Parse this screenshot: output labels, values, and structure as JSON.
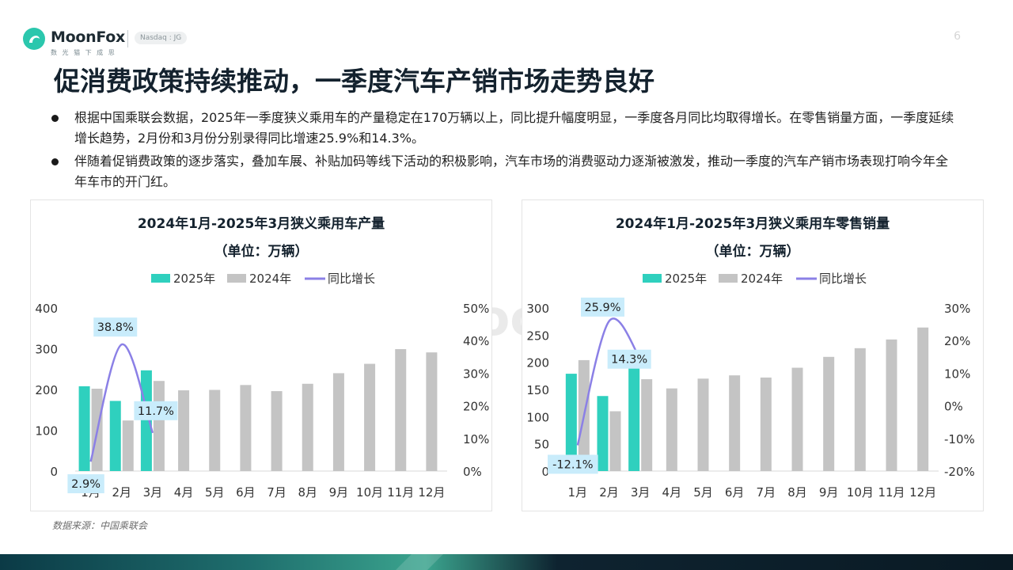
{
  "brand": {
    "name": "MoonFox",
    "tagline": "数 光 猫 下 成 思",
    "ticker": "Nasdaq : JG"
  },
  "page_number": "6",
  "title": "促消费政策持续推动，一季度汽车产销市场走势良好",
  "bullets": [
    "根据中国乘联会数据，2025年一季度狭义乘用车的产量稳定在170万辆以上，同比提升幅度明显，一季度各月同比均取得增长。在零售销量方面，一季度延续增长趋势，2月份和3月份分别录得同比增速25.9%和14.3%。",
    "伴随着促销费政策的逐步落实，叠加车展、补贴加码等线下活动的积极影响，汽车市场的消费驱动力逐渐被激发，推动一季度的汽车产销市场表现打响今年全年车市的开门红。"
  ],
  "footnote": "数据来源：中国乘联会",
  "colors": {
    "s2025": "#2fd0be",
    "s2024": "#c4c4c4",
    "yoy": "#8b80e6",
    "label_bg": "#c9ecfb",
    "title_text": "#14222e"
  },
  "chart_data": [
    {
      "type": "bar",
      "title": "2024年1月-2025年3月狭义乘用车产量",
      "subtitle": "（单位：万辆）",
      "categories": [
        "1月",
        "2月",
        "3月",
        "4月",
        "5月",
        "6月",
        "7月",
        "8月",
        "9月",
        "10月",
        "11月",
        "12月"
      ],
      "series": [
        {
          "name": "2025年",
          "values": [
            208,
            172,
            247,
            null,
            null,
            null,
            null,
            null,
            null,
            null,
            null,
            null
          ]
        },
        {
          "name": "2024年",
          "values": [
            202,
            124,
            221,
            198,
            199,
            211,
            196,
            214,
            240,
            263,
            299,
            291
          ]
        }
      ],
      "line_series": {
        "name": "同比增长",
        "values": [
          2.9,
          38.8,
          11.7
        ],
        "labels": [
          "2.9%",
          "38.8%",
          "11.7%"
        ]
      },
      "y_left": {
        "ticks": [
          "0",
          "100",
          "200",
          "300",
          "400"
        ],
        "range": [
          0,
          400
        ]
      },
      "y_right": {
        "ticks": [
          "0%",
          "10%",
          "20%",
          "30%",
          "40%",
          "50%"
        ],
        "range": [
          0,
          50
        ]
      },
      "legend": "top"
    },
    {
      "type": "bar",
      "title": "2024年1月-2025年3月狭义乘用车零售销量",
      "subtitle": "（单位：万辆）",
      "categories": [
        "1月",
        "2月",
        "3月",
        "4月",
        "5月",
        "6月",
        "7月",
        "8月",
        "9月",
        "10月",
        "11月",
        "12月"
      ],
      "series": [
        {
          "name": "2025年",
          "values": [
            179,
            138,
            194,
            null,
            null,
            null,
            null,
            null,
            null,
            null,
            null,
            null
          ]
        },
        {
          "name": "2024年",
          "values": [
            204,
            110,
            169,
            152,
            170,
            176,
            172,
            190,
            210,
            226,
            242,
            264
          ]
        }
      ],
      "line_series": {
        "name": "同比增长",
        "values": [
          -12.1,
          25.9,
          14.3
        ],
        "labels": [
          "-12.1%",
          "25.9%",
          "14.3%"
        ]
      },
      "y_left": {
        "ticks": [
          "0",
          "50",
          "100",
          "150",
          "200",
          "250",
          "300"
        ],
        "range": [
          0,
          300
        ]
      },
      "y_right": {
        "ticks": [
          "-20%",
          "-10%",
          "0%",
          "10%",
          "20%",
          "30%"
        ],
        "range": [
          -20,
          30
        ]
      },
      "legend": "top"
    }
  ]
}
